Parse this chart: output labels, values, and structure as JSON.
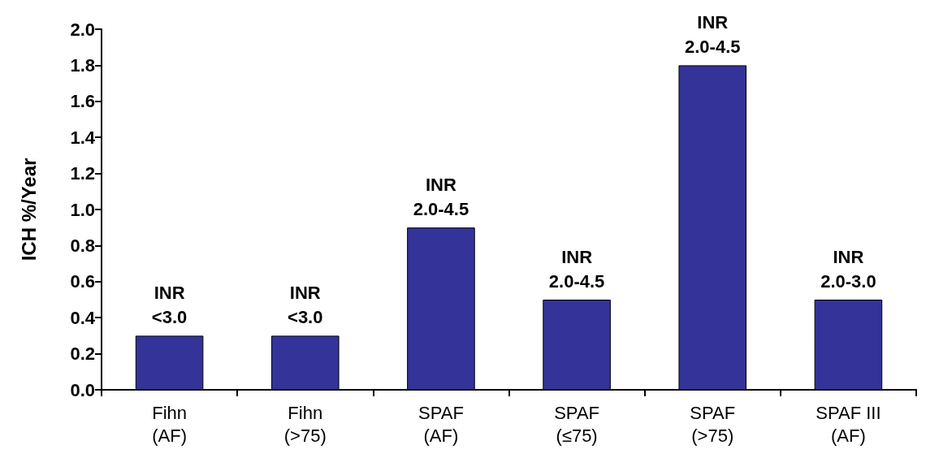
{
  "chart_data": {
    "type": "bar",
    "ylabel": "ICH %/Year",
    "categories": [
      "Fihn\n(AF)",
      "Fihn\n(>75)",
      "SPAF\n(AF)",
      "SPAF\n(≤75)",
      "SPAF\n(>75)",
      "SPAF III\n(AF)"
    ],
    "values": [
      0.3,
      0.3,
      0.9,
      0.5,
      1.8,
      0.5
    ],
    "color": "#333399",
    "ylim": [
      0,
      2.0
    ],
    "yticks": [
      {
        "value": 0,
        "label": "0.0"
      },
      {
        "value": 0.2,
        "label": "0.2"
      },
      {
        "value": 0.4,
        "label": "0.4"
      },
      {
        "value": 0.6,
        "label": "0.6"
      },
      {
        "value": 0.8,
        "label": "0.8"
      },
      {
        "value": 1.0,
        "label": "1.0"
      },
      {
        "value": 1.2,
        "label": "1.2"
      },
      {
        "value": 1.4,
        "label": "1.4"
      },
      {
        "value": 1.6,
        "label": "1.6"
      },
      {
        "value": 1.8,
        "label": "1.8"
      },
      {
        "value": 2.0,
        "label": "2.0"
      }
    ],
    "grid": false,
    "annotations": [
      {
        "text": "INR\n<3.0",
        "x": "Fihn\n(AF)",
        "y": 0.3
      },
      {
        "text": "INR\n<3.0",
        "x": "Fihn\n(>75)",
        "y": 0.3
      },
      {
        "text": "INR\n2.0-4.5",
        "x": "SPAF\n(AF)",
        "y": 0.9
      },
      {
        "text": "INR\n2.0-4.5",
        "x": "SPAF\n(≤75)",
        "y": 0.5
      },
      {
        "text": "INR\n2.0-4.5",
        "x": "SPAF\n(>75)",
        "y": 1.8
      },
      {
        "text": "INR\n2.0-3.0",
        "x": "SPAF III\n(AF)",
        "y": 0.5
      }
    ]
  }
}
